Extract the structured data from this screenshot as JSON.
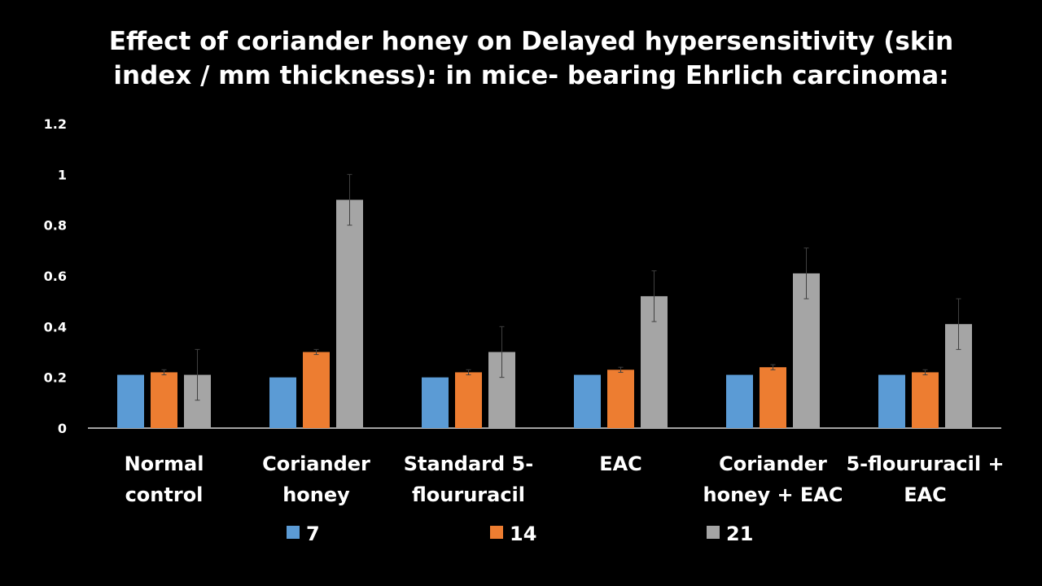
{
  "title": {
    "line1": "Effect of coriander honey on Delayed hypersensitivity (skin",
    "line2": "index / mm thickness): in mice- bearing Ehrlich carcinoma:"
  },
  "colors": {
    "background": "#000000",
    "text": "#ffffff",
    "axis": "#d9d9d9",
    "series": [
      "#5b9bd5",
      "#ed7d31",
      "#a5a5a5"
    ],
    "error_bar": "#404040"
  },
  "chart_data": {
    "type": "bar",
    "categories": [
      [
        "Normal",
        "control"
      ],
      [
        "Coriander",
        "honey"
      ],
      [
        "Standard 5-",
        "floururacil"
      ],
      [
        "EAC"
      ],
      [
        "Coriander",
        "honey + EAC"
      ],
      [
        "5-floururacil +",
        "EAC"
      ]
    ],
    "series": [
      {
        "name": "7",
        "values": [
          0.21,
          0.2,
          0.2,
          0.21,
          0.21,
          0.21
        ],
        "errors": [
          0,
          0,
          0,
          0,
          0,
          0
        ]
      },
      {
        "name": "14",
        "values": [
          0.22,
          0.3,
          0.22,
          0.23,
          0.24,
          0.22
        ],
        "errors": [
          0.01,
          0.01,
          0.01,
          0.01,
          0.01,
          0.01
        ]
      },
      {
        "name": "21",
        "values": [
          0.21,
          0.9,
          0.3,
          0.52,
          0.61,
          0.41
        ],
        "errors": [
          0.1,
          0.1,
          0.1,
          0.1,
          0.1,
          0.1
        ]
      }
    ],
    "yticks": [
      "0",
      "0.2",
      "0.4",
      "0.6",
      "0.8",
      "1",
      "1.2"
    ],
    "ylim": [
      0,
      1.2
    ],
    "grid": false,
    "legend_position": "bottom"
  }
}
